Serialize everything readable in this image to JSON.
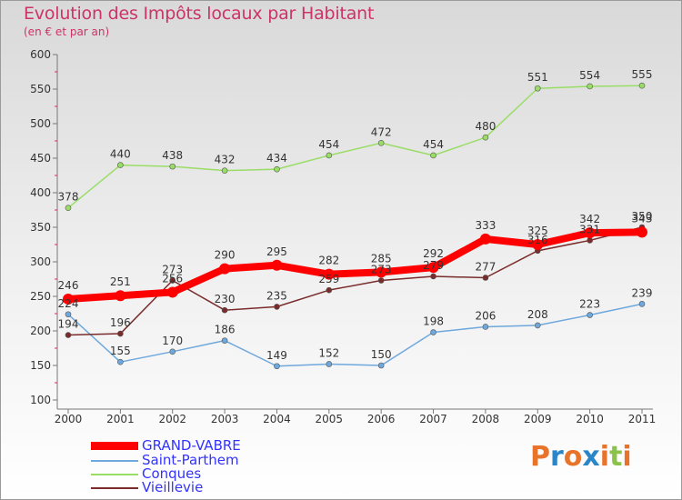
{
  "title": "Evolution des Impôts locaux par Habitant",
  "subtitle": "(en € et par an)",
  "logo": {
    "text": "Proxiti",
    "colors": [
      "#e8732a",
      "#2b86c8",
      "#e8732a",
      "#2b86c8",
      "#e8732a",
      "#8bc34a",
      "#e8732a"
    ]
  },
  "chart_data": {
    "type": "line",
    "title": "Evolution des Impôts locaux par Habitant",
    "subtitle": "(en € et par an)",
    "xlabel": "",
    "ylabel": "",
    "x": [
      "2000",
      "2001",
      "2002",
      "2003",
      "2004",
      "2005",
      "2006",
      "2007",
      "2008",
      "2009",
      "2010",
      "2011"
    ],
    "ylim": [
      100,
      600
    ],
    "yticks": [
      "100",
      "150",
      "200",
      "250",
      "300",
      "350",
      "400",
      "450",
      "500",
      "550",
      "600"
    ],
    "grid": false,
    "legend_position": "bottom-left",
    "series": [
      {
        "name": "GRAND-VABRE",
        "color": "#ff0000",
        "values": [
          246,
          251,
          256,
          290,
          295,
          282,
          285,
          292,
          333,
          325,
          342,
          343
        ],
        "labels": [
          "246",
          "251",
          "256",
          "290",
          "295",
          "282",
          "285",
          "292",
          "333",
          "325",
          "342",
          "343"
        ]
      },
      {
        "name": "Saint-Parthem",
        "color": "#6fa8dc",
        "values": [
          224,
          155,
          170,
          186,
          149,
          152,
          150,
          198,
          206,
          208,
          223,
          239
        ],
        "labels": [
          "224",
          "155",
          "170",
          "186",
          "149",
          "152",
          "150",
          "198",
          "206",
          "208",
          "223",
          "239"
        ]
      },
      {
        "name": "Conques",
        "color": "#99dd66",
        "values": [
          378,
          440,
          438,
          432,
          434,
          454,
          472,
          454,
          480,
          551,
          554,
          555
        ],
        "labels": [
          "378",
          "440",
          "438",
          "432",
          "434",
          "454",
          "472",
          "454",
          "480",
          "551",
          "554",
          "555"
        ]
      },
      {
        "name": "Vieillevie",
        "color": "#7a2b2b",
        "values": [
          194,
          196,
          273,
          230,
          235,
          259,
          273,
          279,
          277,
          316,
          331,
          350
        ],
        "labels": [
          "194",
          "196",
          "273",
          "230",
          "235",
          "259",
          "273",
          "279",
          "277",
          "316",
          "331",
          "350"
        ]
      }
    ]
  }
}
